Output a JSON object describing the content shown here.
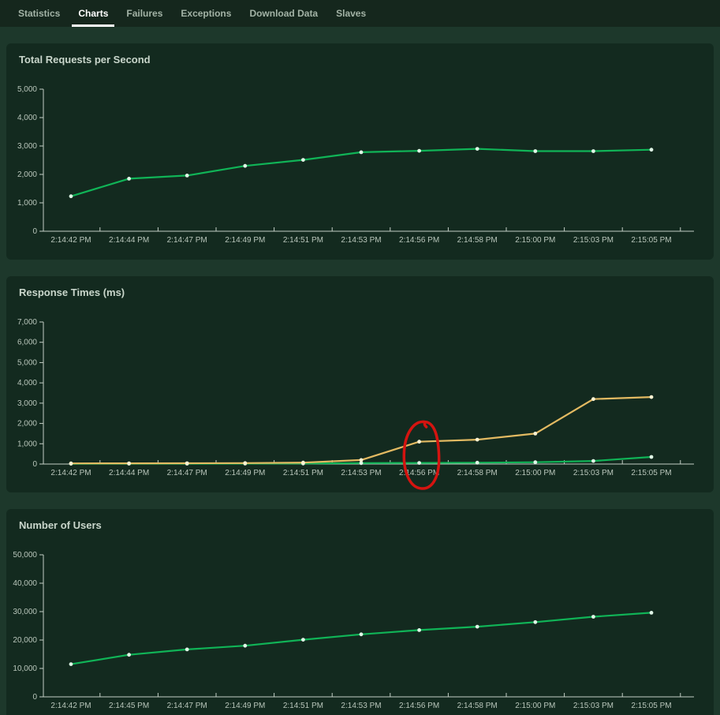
{
  "nav": {
    "tabs": [
      {
        "label": "Statistics",
        "active": false
      },
      {
        "label": "Charts",
        "active": true
      },
      {
        "label": "Failures",
        "active": false
      },
      {
        "label": "Exceptions",
        "active": false
      },
      {
        "label": "Download Data",
        "active": false
      },
      {
        "label": "Slaves",
        "active": false
      }
    ]
  },
  "colors": {
    "page_background": "#1d382b",
    "nav_background": "#15271d",
    "panel_background": "#132a1f",
    "accent_green": "#10b457",
    "accent_orange": "#e3ba62",
    "green_marker": "#dff6e6",
    "orange_marker": "#fbf2d2",
    "annotation_red": "#d41410",
    "axis": "#c3cec5"
  },
  "chart_data": [
    {
      "type": "line",
      "title": "Total Requests per Second",
      "ylim": [
        0,
        5000
      ],
      "ytick_values": [
        0,
        1000,
        2000,
        3000,
        4000,
        5000
      ],
      "ytick_labels": [
        "0",
        "1,000",
        "2,000",
        "3,000",
        "4,000",
        "5,000"
      ],
      "grid": false,
      "legend": "none",
      "categories": [
        "2:14:42 PM",
        "2:14:44 PM",
        "2:14:47 PM",
        "2:14:49 PM",
        "2:14:51 PM",
        "2:14:53 PM",
        "2:14:56 PM",
        "2:14:58 PM",
        "2:15:00 PM",
        "2:15:03 PM",
        "2:15:05 PM"
      ],
      "series": [
        {
          "name": "green",
          "color": "#10b457",
          "marker": "#dff6e6",
          "values": [
            1230,
            1850,
            1960,
            2300,
            2510,
            2780,
            2830,
            2900,
            2820,
            2820,
            2870
          ]
        }
      ]
    },
    {
      "type": "line",
      "title": "Response Times (ms)",
      "ylim": [
        0,
        7000
      ],
      "ytick_values": [
        0,
        1000,
        2000,
        3000,
        4000,
        5000,
        6000,
        7000
      ],
      "ytick_labels": [
        "0",
        "1,000",
        "2,000",
        "3,000",
        "4,000",
        "5,000",
        "6,000",
        "7,000"
      ],
      "grid": false,
      "legend": "none",
      "categories": [
        "2:14:42 PM",
        "2:14:44 PM",
        "2:14:47 PM",
        "2:14:49 PM",
        "2:14:51 PM",
        "2:14:53 PM",
        "2:14:56 PM",
        "2:14:58 PM",
        "2:15:00 PM",
        "2:15:03 PM",
        "2:15:05 PM"
      ],
      "series": [
        {
          "name": "green",
          "color": "#10b457",
          "marker": "#dff6e6",
          "values": [
            15,
            18,
            20,
            22,
            28,
            45,
            55,
            65,
            90,
            150,
            350
          ]
        },
        {
          "name": "orange",
          "color": "#e3ba62",
          "marker": "#fbf2d2",
          "values": [
            30,
            35,
            40,
            45,
            70,
            200,
            1100,
            1200,
            1500,
            3200,
            3300
          ]
        }
      ],
      "annotation": {
        "shape": "hand-drawn-circle",
        "color": "#d41410",
        "category": "2:14:56 PM",
        "series": "orange"
      }
    },
    {
      "type": "line",
      "title": "Number of Users",
      "ylim": [
        0,
        50000
      ],
      "ytick_values": [
        0,
        10000,
        20000,
        30000,
        40000,
        50000
      ],
      "ytick_labels": [
        "0",
        "10,000",
        "20,000",
        "30,000",
        "40,000",
        "50,000"
      ],
      "grid": false,
      "legend": "none",
      "categories": [
        "2:14:42 PM",
        "2:14:45 PM",
        "2:14:47 PM",
        "2:14:49 PM",
        "2:14:51 PM",
        "2:14:53 PM",
        "2:14:56 PM",
        "2:14:58 PM",
        "2:15:00 PM",
        "2:15:03 PM",
        "2:15:05 PM"
      ],
      "series": [
        {
          "name": "green",
          "color": "#10b457",
          "marker": "#dff6e6",
          "values": [
            11500,
            14800,
            16700,
            18000,
            20100,
            22000,
            23500,
            24700,
            26300,
            28200,
            29600
          ]
        }
      ]
    }
  ]
}
